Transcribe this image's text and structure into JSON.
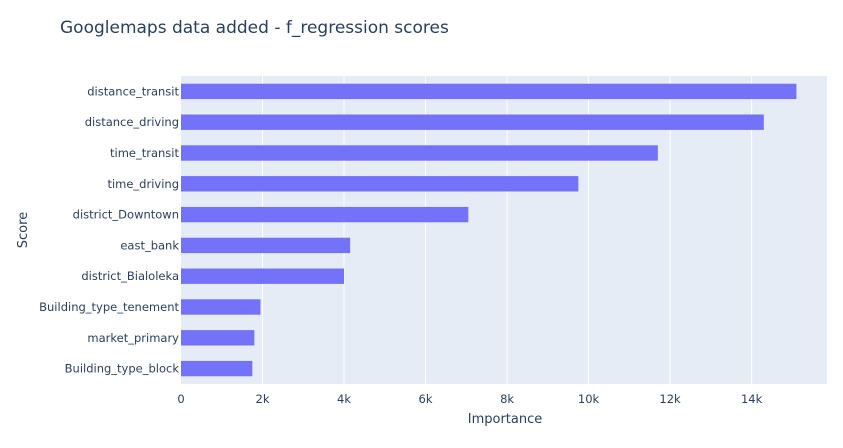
{
  "chart_data": {
    "type": "bar",
    "orientation": "horizontal",
    "title": "Googlemaps data added - f_regression scores",
    "xlabel": "Importance",
    "ylabel": "Score",
    "xlim": [
      0,
      15850
    ],
    "xticks": [
      0,
      2000,
      4000,
      6000,
      8000,
      10000,
      12000,
      14000
    ],
    "xtick_labels": [
      "0",
      "2k",
      "4k",
      "6k",
      "8k",
      "10k",
      "12k",
      "14k"
    ],
    "categories": [
      "distance_transit",
      "distance_driving",
      "time_transit",
      "time_driving",
      "district_Downtown",
      "east_bank",
      "district_Bialoleka",
      "Building_type_tenement",
      "market_primary",
      "Building_type_block"
    ],
    "values": [
      15100,
      14300,
      11700,
      9750,
      7050,
      4150,
      4000,
      1950,
      1800,
      1750
    ],
    "bar_color": "#7372f8",
    "plot_background": "#e5ecf6",
    "grid": true
  }
}
